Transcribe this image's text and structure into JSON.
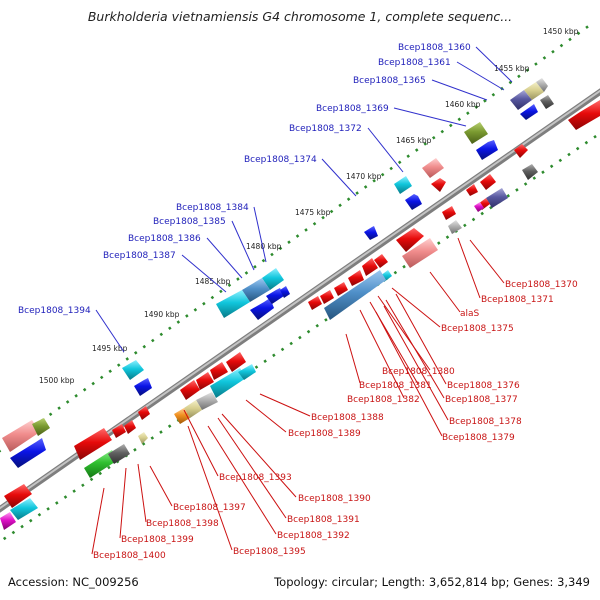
{
  "title": "Burkholderia vietnamiensis G4 chromosome 1, complete sequenc...",
  "footer": {
    "accession": "Accession: NC_009256",
    "topology": "Topology: circular; Length: 3,652,814 bp; Genes: 3,349"
  },
  "ticks": [
    "1450 kbp",
    "1455 kbp",
    "1460 kbp",
    "1465 kbp",
    "1470 kbp",
    "1475 kbp",
    "1480 kbp",
    "1485 kbp",
    "1490 kbp",
    "1495 kbp",
    "1500 kbp"
  ],
  "top_labels": [
    "Bcep1808_1360",
    "Bcep1808_1361",
    "Bcep1808_1365",
    "Bcep1808_1369",
    "Bcep1808_1372",
    "Bcep1808_1374",
    "Bcep1808_1384",
    "Bcep1808_1385",
    "Bcep1808_1386",
    "Bcep1808_1387",
    "Bcep1808_1394"
  ],
  "bottom_labels": [
    "Bcep1808_1370",
    "Bcep1808_1371",
    "alaS",
    "Bcep1808_1375",
    "Bcep1808_1380",
    "Bcep1808_1381",
    "Bcep1808_1376",
    "Bcep1808_1382",
    "Bcep1808_1377",
    "Bcep1808_1378",
    "Bcep1808_1379",
    "Bcep1808_1388",
    "Bcep1808_1389",
    "Bcep1808_1393",
    "Bcep1808_1390",
    "Bcep1808_1397",
    "Bcep1808_1391",
    "Bcep1808_1398",
    "Bcep1808_1392",
    "Bcep1808_1399",
    "Bcep1808_1395",
    "Bcep1808_1400"
  ],
  "colors": {
    "backbone": "#8a8a8a",
    "tick_dot": "#2e8b2e",
    "label_top": "#2222bb",
    "label_bottom": "#c81414",
    "forward_gene": "#0a14e6",
    "reverse_gene": "#e60a0a"
  }
}
